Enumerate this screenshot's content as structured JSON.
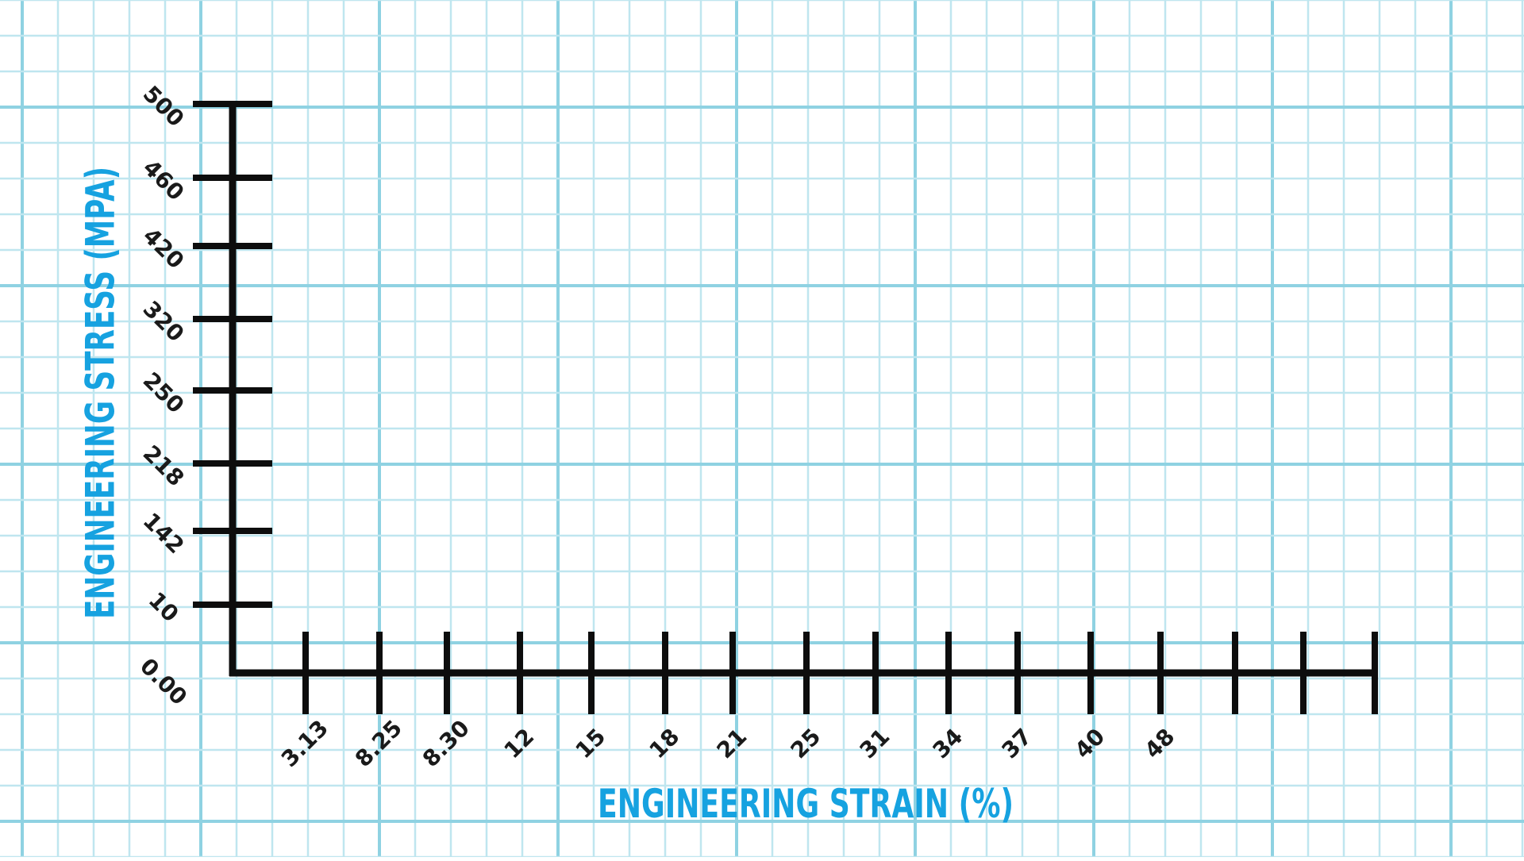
{
  "chart_data": {
    "type": "scatter",
    "title": "",
    "xlabel": "ENGINEERING STRAIN (%)",
    "ylabel": "ENGINEERING STRESS (MPA)",
    "x_tick_labels": [
      "3.13",
      "8.25",
      "8.30",
      "12",
      "15",
      "18",
      "21",
      "25",
      "31",
      "34",
      "37",
      "40",
      "48",
      "",
      "",
      ""
    ],
    "y_tick_labels": [
      "0.00",
      "10",
      "142",
      "218",
      "250",
      "320",
      "420",
      "460",
      "500"
    ],
    "series": [],
    "grid": true,
    "grid_style": "graph-paper",
    "colors": {
      "grid_minor": "#bfe6ef",
      "grid_major": "#8fd2e2",
      "axis": "#0d0d0d",
      "axis_title": "#16a2e0",
      "tick_label": "#1a1a1a"
    }
  }
}
